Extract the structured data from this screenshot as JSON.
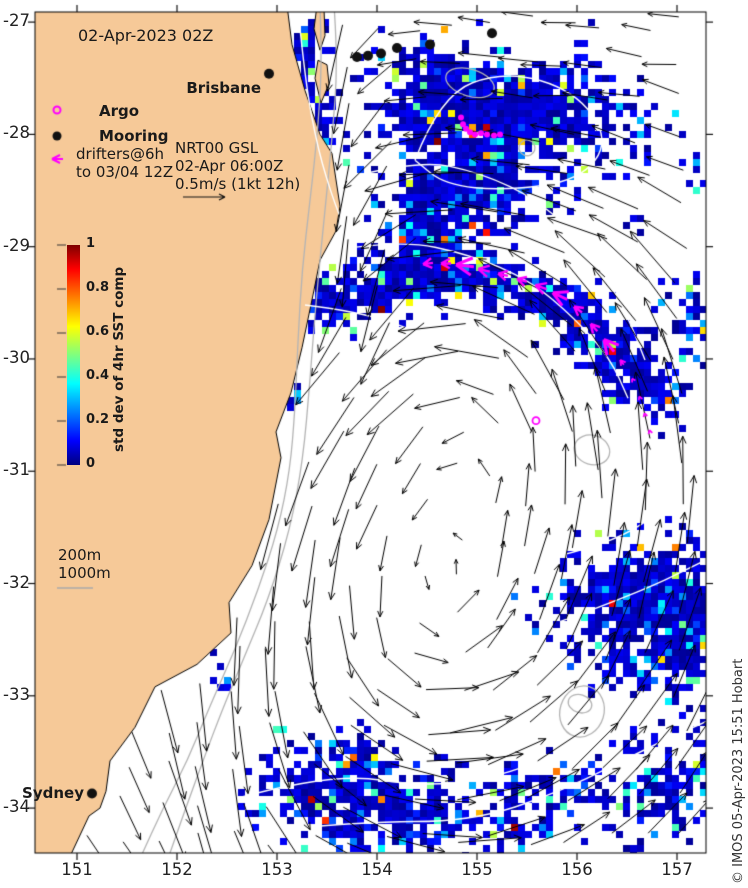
{
  "figure": {
    "timestamp": "02-Apr-2023 02Z",
    "credit": "© IMOS 05-Apr-2023 15:51 Hobart"
  },
  "legend": {
    "argo": "Argo",
    "mooring": "Mooring",
    "drifters_line1": "drifters@6h",
    "drifters_line2": "to 03/04 12Z",
    "gsl_line1": "NRT00 GSL",
    "gsl_line2": "02-Apr 06:00Z",
    "gsl_line3": "0.5m/s (1kt 12h)",
    "isobath_200": "200m",
    "isobath_1000": "1000m"
  },
  "colorbar": {
    "title": "std dev of 4hr SST comp",
    "tick_labels": [
      "1",
      "0.8",
      "0.6",
      "0.4",
      "0.2",
      "0"
    ],
    "min": 0,
    "max": 1,
    "colormap": "jet"
  },
  "colors": {
    "land": "#f6c998",
    "coast": "#000000",
    "magenta": "#ff00ff",
    "bathy_gray": "#b4b4b4",
    "contour_white": "#ffffff",
    "arrow_black": "#000000"
  },
  "chart_data": {
    "type": "map",
    "title": "02-Apr-2023 02Z",
    "description": "Standard deviation of 4hr SST composite with NRT00 GSL surface currents, moorings, Argo floats and drifter tracks, SE Australia",
    "axes": {
      "lon_min": 150.58,
      "lon_max": 157.29,
      "lat_min": -34.4,
      "lat_max": -26.91,
      "x_ticks": [
        151,
        152,
        153,
        154,
        155,
        156,
        157
      ],
      "y_ticks": [
        -27,
        -28,
        -29,
        -30,
        -31,
        -32,
        -33,
        -34
      ]
    },
    "cities": [
      {
        "name": "Brisbane",
        "lon": 152.92,
        "lat": -27.46
      },
      {
        "name": "Sydney",
        "lon": 151.15,
        "lat": -33.87
      }
    ],
    "moorings": [
      [
        153.8,
        -27.31
      ],
      [
        153.91,
        -27.3
      ],
      [
        154.04,
        -27.28
      ],
      [
        154.2,
        -27.23
      ],
      [
        154.53,
        -27.2
      ],
      [
        155.15,
        -27.1
      ]
    ],
    "argo_floats": [
      [
        155.59,
        -30.55
      ]
    ],
    "drifter_dots": [
      [
        154.84,
        -27.85
      ],
      [
        154.86,
        -27.91
      ],
      [
        154.89,
        -27.95
      ],
      [
        154.93,
        -27.98
      ],
      [
        154.98,
        -28.0
      ],
      [
        155.04,
        -27.99
      ],
      [
        155.1,
        -28.0
      ],
      [
        155.17,
        -28.01
      ],
      [
        155.23,
        -28.0
      ]
    ],
    "drifter_track": {
      "points": [
        [
          156.73,
          -30.65
        ],
        [
          156.68,
          -30.5
        ],
        [
          156.63,
          -30.35
        ],
        [
          156.56,
          -30.19
        ],
        [
          156.45,
          -30.03
        ],
        [
          156.32,
          -29.88
        ],
        [
          156.17,
          -29.72
        ],
        [
          156.01,
          -29.56
        ],
        [
          155.83,
          -29.44
        ],
        [
          155.64,
          -29.36
        ],
        [
          155.45,
          -29.3
        ],
        [
          155.26,
          -29.25
        ],
        [
          155.07,
          -29.21
        ],
        [
          154.88,
          -29.17
        ],
        [
          154.69,
          -29.15
        ],
        [
          154.51,
          -29.15
        ],
        [
          154.34,
          -29.17
        ]
      ],
      "sizes": [
        2,
        2,
        2,
        2,
        3,
        8,
        5,
        5,
        8,
        6,
        5,
        5,
        6,
        9,
        5,
        5,
        4
      ]
    },
    "coastline": [
      [
        153.1,
        -26.85
      ],
      [
        153.15,
        -27.2
      ],
      [
        153.28,
        -27.61
      ],
      [
        153.43,
        -28.0
      ],
      [
        153.55,
        -28.17
      ],
      [
        153.63,
        -28.64
      ],
      [
        153.59,
        -28.86
      ],
      [
        153.43,
        -29.12
      ],
      [
        153.36,
        -29.43
      ],
      [
        153.25,
        -29.9
      ],
      [
        153.14,
        -30.3
      ],
      [
        152.99,
        -30.65
      ],
      [
        153.04,
        -30.88
      ],
      [
        152.92,
        -31.43
      ],
      [
        152.75,
        -31.84
      ],
      [
        152.52,
        -32.17
      ],
      [
        152.54,
        -32.44
      ],
      [
        152.2,
        -32.72
      ],
      [
        151.78,
        -32.92
      ],
      [
        151.58,
        -33.28
      ],
      [
        151.33,
        -33.58
      ],
      [
        151.29,
        -33.85
      ],
      [
        151.23,
        -34.0
      ],
      [
        151.12,
        -34.07
      ],
      [
        150.92,
        -34.45
      ],
      [
        150.5,
        -34.45
      ],
      [
        150.5,
        -26.85
      ]
    ],
    "islands": [
      [
        [
          153.4,
          -26.85
        ],
        [
          153.47,
          -26.88
        ],
        [
          153.48,
          -27.12
        ],
        [
          153.43,
          -27.25
        ],
        [
          153.37,
          -27.06
        ]
      ],
      [
        [
          153.41,
          -27.34
        ],
        [
          153.5,
          -27.38
        ],
        [
          153.52,
          -27.55
        ],
        [
          153.44,
          -27.72
        ],
        [
          153.38,
          -27.5
        ]
      ]
    ],
    "isobaths": {
      "m200": [
        [
          153.43,
          -26.85
        ],
        [
          153.45,
          -27.34
        ],
        [
          153.41,
          -27.96
        ],
        [
          153.33,
          -28.59
        ],
        [
          153.25,
          -29.21
        ],
        [
          153.21,
          -29.83
        ],
        [
          153.18,
          -30.45
        ],
        [
          153.13,
          -30.99
        ],
        [
          153.01,
          -31.52
        ],
        [
          152.81,
          -32.06
        ],
        [
          152.58,
          -32.59
        ],
        [
          152.31,
          -33.13
        ],
        [
          152.11,
          -33.57
        ],
        [
          151.85,
          -34.02
        ],
        [
          151.63,
          -34.45
        ]
      ],
      "m1000": [
        [
          153.57,
          -26.85
        ],
        [
          153.61,
          -27.34
        ],
        [
          153.55,
          -28.05
        ],
        [
          153.47,
          -28.76
        ],
        [
          153.39,
          -29.48
        ],
        [
          153.33,
          -30.19
        ],
        [
          153.26,
          -30.9
        ],
        [
          153.13,
          -31.52
        ],
        [
          152.91,
          -32.15
        ],
        [
          152.66,
          -32.68
        ],
        [
          152.45,
          -33.13
        ],
        [
          152.28,
          -33.53
        ],
        [
          152.08,
          -34.02
        ],
        [
          151.91,
          -34.45
        ]
      ],
      "closed": [
        {
          "lon": 156.15,
          "lat": -30.81,
          "rlon": 0.18,
          "rlat": 0.13
        },
        {
          "lon": 156.05,
          "lat": -33.14,
          "rlon": 0.22,
          "rlat": 0.23
        },
        {
          "lon": 156.03,
          "lat": -33.07,
          "rlon": 0.12,
          "rlat": 0.08
        },
        {
          "lon": 154.93,
          "lat": -27.54,
          "rlon": 0.25,
          "rlat": 0.12
        },
        {
          "lon": 155.5,
          "lat": -28.12,
          "rlon": 0.08,
          "rlat": 0.07
        }
      ]
    },
    "sst_blobs": [
      [
        153.38,
        -27.87,
        0.22,
        0.8,
        0.85
      ],
      [
        153.23,
        -27.16,
        0.2,
        0.22,
        0.7
      ],
      [
        154.53,
        -27.69,
        0.6,
        0.49,
        0.92
      ],
      [
        155.63,
        -27.78,
        0.9,
        0.53,
        0.92
      ],
      [
        155.03,
        -28.5,
        0.7,
        0.4,
        0.88
      ],
      [
        154.43,
        -28.85,
        0.3,
        0.53,
        0.8
      ],
      [
        153.78,
        -29.47,
        0.33,
        0.25,
        0.8
      ],
      [
        154.18,
        -29.3,
        0.33,
        0.25,
        0.8
      ],
      [
        154.63,
        -29.21,
        0.33,
        0.25,
        0.8
      ],
      [
        155.13,
        -29.3,
        0.33,
        0.25,
        0.8
      ],
      [
        155.63,
        -29.43,
        0.33,
        0.25,
        0.8
      ],
      [
        156.03,
        -29.65,
        0.33,
        0.25,
        0.8
      ],
      [
        156.38,
        -29.92,
        0.33,
        0.25,
        0.8
      ],
      [
        156.63,
        -30.19,
        0.33,
        0.25,
        0.75
      ],
      [
        156.83,
        -30.38,
        0.2,
        0.27,
        0.55
      ],
      [
        153.18,
        -29.39,
        0.22,
        0.34,
        0.7
      ],
      [
        153.48,
        -29.47,
        0.18,
        0.27,
        0.6
      ],
      [
        157.13,
        -29.65,
        0.28,
        0.4,
        0.5
      ],
      [
        157.18,
        -28.33,
        0.2,
        0.22,
        0.35
      ],
      [
        156.58,
        -28.78,
        0.15,
        0.09,
        0.9
      ],
      [
        156.98,
        -32.65,
        0.18,
        0.11,
        0.85
      ],
      [
        156.23,
        -32.15,
        0.6,
        0.4,
        0.75
      ],
      [
        156.88,
        -32.06,
        0.45,
        0.49,
        0.8
      ],
      [
        156.63,
        -32.68,
        0.5,
        0.31,
        0.6
      ],
      [
        157.23,
        -32.41,
        0.3,
        0.53,
        0.7
      ],
      [
        156.63,
        -33.84,
        0.55,
        0.45,
        0.6
      ],
      [
        157.23,
        -33.57,
        0.3,
        0.53,
        0.5
      ],
      [
        153.53,
        -33.88,
        0.75,
        0.45,
        0.8
      ],
      [
        154.43,
        -34.06,
        0.55,
        0.31,
        0.75
      ],
      [
        155.43,
        -33.97,
        0.45,
        0.36,
        0.7
      ],
      [
        156.03,
        -33.75,
        0.3,
        0.27,
        0.5
      ],
      [
        153.83,
        -33.57,
        0.3,
        0.18,
        0.5
      ],
      [
        153.15,
        -30.32,
        0.08,
        0.11,
        0.7
      ],
      [
        153.68,
        -34.21,
        0.15,
        0.11,
        0.7
      ],
      [
        156.63,
        -28.01,
        0.12,
        0.18,
        0.4
      ],
      [
        152.43,
        -32.81,
        0.12,
        0.14,
        0.7
      ]
    ],
    "gsl_contours": [
      [
        [
          153.21,
          -26.88
        ],
        [
          153.28,
          -27.52
        ],
        [
          153.41,
          -28.14
        ],
        [
          153.58,
          -28.63
        ],
        [
          153.73,
          -28.94
        ]
      ],
      [
        [
          154.38,
          -28.23
        ],
        [
          154.63,
          -27.65
        ],
        [
          155.28,
          -27.43
        ],
        [
          155.98,
          -27.61
        ],
        [
          156.33,
          -28.05
        ],
        [
          156.03,
          -28.41
        ],
        [
          155.28,
          -28.5
        ],
        [
          154.68,
          -28.45
        ],
        [
          154.38,
          -28.23
        ]
      ],
      [
        [
          153.83,
          -28.36
        ],
        [
          154.43,
          -28.23
        ],
        [
          155.03,
          -28.34
        ],
        [
          155.63,
          -28.59
        ],
        [
          156.13,
          -29.03
        ],
        [
          156.48,
          -29.56
        ],
        [
          156.68,
          -30.01
        ]
      ],
      [
        [
          153.58,
          -29.03
        ],
        [
          154.23,
          -28.94
        ],
        [
          154.93,
          -29.07
        ],
        [
          155.53,
          -29.3
        ],
        [
          155.98,
          -29.64
        ],
        [
          156.33,
          -29.99
        ],
        [
          156.51,
          -30.35
        ]
      ],
      [
        [
          153.28,
          -29.52
        ],
        [
          153.83,
          -29.58
        ],
        [
          154.43,
          -29.76
        ],
        [
          154.85,
          -30.01
        ]
      ],
      [
        [
          152.53,
          -33.93
        ],
        [
          153.53,
          -33.68
        ],
        [
          154.53,
          -33.82
        ],
        [
          155.43,
          -33.68
        ],
        [
          156.43,
          -33.23
        ],
        [
          157.29,
          -33.03
        ]
      ],
      [
        [
          152.78,
          -34.21
        ],
        [
          153.83,
          -34.12
        ],
        [
          154.93,
          -34.12
        ],
        [
          155.83,
          -33.86
        ],
        [
          156.83,
          -33.41
        ],
        [
          157.29,
          -33.23
        ]
      ],
      [
        [
          155.63,
          -31.79
        ],
        [
          156.33,
          -31.66
        ],
        [
          156.93,
          -31.3
        ],
        [
          157.29,
          -31.24
        ]
      ],
      [
        [
          155.83,
          -32.34
        ],
        [
          156.63,
          -32.08
        ],
        [
          157.29,
          -31.79
        ]
      ]
    ],
    "current_field": {
      "reference": "0.5m/s (1kt 12h)",
      "vortices": [
        {
          "lon": 155.13,
          "lat": -30.28,
          "radius_deg": 1.3,
          "speed": 38,
          "sense": "ccw"
        },
        {
          "lon": 154.43,
          "lat": -32.59,
          "radius_deg": 1.7,
          "speed": 42,
          "sense": "ccw"
        }
      ],
      "jets": [
        {
          "path": [
            [
              153.48,
              -26.91
            ],
            [
              153.58,
              -27.69
            ],
            [
              153.68,
              -28.41
            ],
            [
              153.83,
              -29.03
            ],
            [
              154.06,
              -29.47
            ]
          ],
          "width_deg": 0.45,
          "speed": 55
        },
        {
          "path": [
            [
              152.81,
              -31.66
            ],
            [
              152.65,
              -32.55
            ],
            [
              152.51,
              -33.44
            ],
            [
              152.41,
              -34.33
            ]
          ],
          "width_deg": 0.5,
          "speed": 48
        }
      ]
    }
  }
}
